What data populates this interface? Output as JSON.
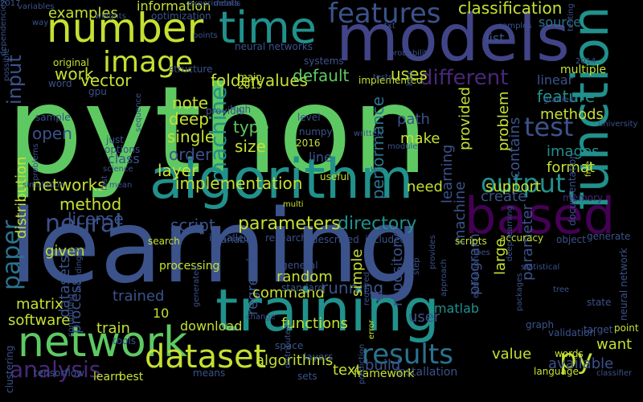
{
  "palette": {
    "background": "#000000",
    "light_green": "#c5e032",
    "green": "#5ec962",
    "bright_green": "#7ad151",
    "teal": "#21918c",
    "teal_dark": "#1f9e89",
    "blue": "#3b528b",
    "indigo": "#414487",
    "purple": "#440154",
    "purple2": "#482878",
    "cyan_blue": "#2c728e",
    "yellow": "#fde725"
  },
  "words": [
    {
      "text": "python",
      "color": "#5ec962",
      "vertical": false
    },
    {
      "text": "learning",
      "color": "#3b528b",
      "vertical": false
    },
    {
      "text": "models",
      "color": "#414487",
      "vertical": false
    },
    {
      "text": "number",
      "color": "#c5e032",
      "vertical": false
    },
    {
      "text": "time",
      "color": "#21918c",
      "vertical": false
    },
    {
      "text": "algorithm",
      "color": "#21918c",
      "vertical": false
    },
    {
      "text": "based",
      "color": "#440154",
      "vertical": false
    },
    {
      "text": "function",
      "color": "#21918c",
      "vertical": true
    },
    {
      "text": "training",
      "color": "#21918c",
      "vertical": false
    },
    {
      "text": "network",
      "color": "#5ec962",
      "vertical": false
    },
    {
      "text": "features",
      "color": "#3b528b",
      "vertical": false
    },
    {
      "text": "image",
      "color": "#c5e032",
      "vertical": false
    },
    {
      "text": "dataset",
      "color": "#c5e032",
      "vertical": false
    },
    {
      "text": "neural",
      "color": "#3b528b",
      "vertical": false
    },
    {
      "text": "output",
      "color": "#21918c",
      "vertical": false
    },
    {
      "text": "test",
      "color": "#3b528b",
      "vertical": false
    },
    {
      "text": "results",
      "color": "#2c728e",
      "vertical": false
    },
    {
      "text": "analysis",
      "color": "#482878",
      "vertical": false
    },
    {
      "text": "py",
      "color": "#c5e032",
      "vertical": false
    },
    {
      "text": "paper",
      "color": "#2c728e",
      "vertical": true
    },
    {
      "text": "machine",
      "color": "#21918c",
      "vertical": true
    },
    {
      "text": "input",
      "color": "#3b528b",
      "vertical": true
    },
    {
      "text": "different",
      "color": "#482878",
      "vertical": false
    },
    {
      "text": "directory",
      "color": "#21918c",
      "vertical": false
    },
    {
      "text": "parameters",
      "color": "#c5e032",
      "vertical": false
    },
    {
      "text": "classification",
      "color": "#c5e032",
      "vertical": false
    },
    {
      "text": "examples",
      "color": "#c5e032",
      "vertical": false
    },
    {
      "text": "information",
      "color": "#c5e032",
      "vertical": false
    },
    {
      "text": "values",
      "color": "#c5e032",
      "vertical": false
    },
    {
      "text": "folder",
      "color": "#c5e032",
      "vertical": false
    },
    {
      "text": "vector",
      "color": "#c5e032",
      "vertical": false
    },
    {
      "text": "work",
      "color": "#c5e032",
      "vertical": false
    },
    {
      "text": "note",
      "color": "#c5e032",
      "vertical": false
    },
    {
      "text": "uses",
      "color": "#c5e032",
      "vertical": false
    },
    {
      "text": "default",
      "color": "#5ec962",
      "vertical": false
    },
    {
      "text": "running",
      "color": "#3b528b",
      "vertical": false
    },
    {
      "text": "deep",
      "color": "#c5e032",
      "vertical": false
    },
    {
      "text": "type",
      "color": "#5ec962",
      "vertical": false
    },
    {
      "text": "size",
      "color": "#c5e032",
      "vertical": false
    },
    {
      "text": "single",
      "color": "#c5e032",
      "vertical": false
    },
    {
      "text": "order",
      "color": "#3b528b",
      "vertical": false
    },
    {
      "text": "layer",
      "color": "#c5e032",
      "vertical": false
    },
    {
      "text": "open",
      "color": "#3b528b",
      "vertical": false
    },
    {
      "text": "networks",
      "color": "#c5e032",
      "vertical": false
    },
    {
      "text": "method",
      "color": "#c5e032",
      "vertical": false
    },
    {
      "text": "license",
      "color": "#3b528b",
      "vertical": false
    },
    {
      "text": "script",
      "color": "#3b528b",
      "vertical": false
    },
    {
      "text": "implementation",
      "color": "#c5e032",
      "vertical": false
    },
    {
      "text": "class",
      "color": "#3b528b",
      "vertical": false
    },
    {
      "text": "source",
      "color": "#2c728e",
      "vertical": false
    },
    {
      "text": "list",
      "color": "#3b528b",
      "vertical": false
    },
    {
      "text": "linear",
      "color": "#3b528b",
      "vertical": false
    },
    {
      "text": "feature",
      "color": "#21918c",
      "vertical": false
    },
    {
      "text": "methods",
      "color": "#c5e032",
      "vertical": false
    },
    {
      "text": "images",
      "color": "#21918c",
      "vertical": false
    },
    {
      "text": "format",
      "color": "#c5e032",
      "vertical": false
    },
    {
      "text": "support",
      "color": "#c5e032",
      "vertical": false
    },
    {
      "text": "create",
      "color": "#3b528b",
      "vertical": false
    },
    {
      "text": "need",
      "color": "#c5e032",
      "vertical": false
    },
    {
      "text": "path",
      "color": "#3b528b",
      "vertical": false
    },
    {
      "text": "make",
      "color": "#c5e032",
      "vertical": false
    },
    {
      "text": "line",
      "color": "#3b528b",
      "vertical": false
    },
    {
      "text": "multiple",
      "color": "#c5e032",
      "vertical": false
    },
    {
      "text": "problem",
      "color": "#c5e032",
      "vertical": true
    },
    {
      "text": "performance",
      "color": "#2c728e",
      "vertical": true
    },
    {
      "text": "contains",
      "color": "#3b528b",
      "vertical": true
    },
    {
      "text": "distribution",
      "color": "#c5e032",
      "vertical": true
    },
    {
      "text": "provided",
      "color": "#c5e032",
      "vertical": true
    },
    {
      "text": "learning",
      "color": "#3b528b",
      "vertical": true
    },
    {
      "text": "machine",
      "color": "#3b528b",
      "vertical": true
    },
    {
      "text": "repository",
      "color": "#3b528b",
      "vertical": true
    },
    {
      "text": "simple",
      "color": "#c5e032",
      "vertical": true
    },
    {
      "text": "program",
      "color": "#3b528b",
      "vertical": true
    },
    {
      "text": "parameter",
      "color": "#3b528b",
      "vertical": true
    },
    {
      "text": "large",
      "color": "#c5e032",
      "vertical": true
    },
    {
      "text": "regression",
      "color": "#3b528b",
      "vertical": true
    },
    {
      "text": "datasets",
      "color": "#3b528b",
      "vertical": true
    },
    {
      "text": "process",
      "color": "#3b528b",
      "vertical": true
    },
    {
      "text": "given",
      "color": "#c5e032",
      "vertical": false
    },
    {
      "text": "random",
      "color": "#c5e032",
      "vertical": false
    },
    {
      "text": "command",
      "color": "#c5e032",
      "vertical": false
    },
    {
      "text": "trained",
      "color": "#3b528b",
      "vertical": false
    },
    {
      "text": "processing",
      "color": "#c5e032",
      "vertical": false
    },
    {
      "text": "10",
      "color": "#c5e032",
      "vertical": false
    },
    {
      "text": "matrix",
      "color": "#c5e032",
      "vertical": false
    },
    {
      "text": "software",
      "color": "#c5e032",
      "vertical": false
    },
    {
      "text": "train",
      "color": "#c5e032",
      "vertical": false
    },
    {
      "text": "download",
      "color": "#c5e032",
      "vertical": false
    },
    {
      "text": "functions",
      "color": "#c5e032",
      "vertical": false
    },
    {
      "text": "user",
      "color": "#3b528b",
      "vertical": false
    },
    {
      "text": "matlab",
      "color": "#21918c",
      "vertical": false
    },
    {
      "text": "value",
      "color": "#c5e032",
      "vertical": false
    },
    {
      "text": "build",
      "color": "#3b528b",
      "vertical": false
    },
    {
      "text": "available",
      "color": "#3b528b",
      "vertical": false
    },
    {
      "text": "want",
      "color": "#c5e032",
      "vertical": false
    },
    {
      "text": "algorithms",
      "color": "#c5e032",
      "vertical": false
    },
    {
      "text": "text",
      "color": "#c5e032",
      "vertical": false
    },
    {
      "text": "accuracy",
      "color": "#c5e032",
      "vertical": false
    },
    {
      "text": "installation",
      "color": "#3b528b",
      "vertical": false
    },
    {
      "text": "framework",
      "color": "#c5e032",
      "vertical": false
    },
    {
      "text": "language",
      "color": "#c5e032",
      "vertical": false
    },
    {
      "text": "classifier",
      "color": "#3b528b",
      "vertical": false
    },
    {
      "text": "neural network",
      "color": "#3b528b",
      "vertical": true
    },
    {
      "text": "generate",
      "color": "#3b528b",
      "vertical": false
    },
    {
      "text": "point",
      "color": "#c5e032",
      "vertical": false
    },
    {
      "text": "graph",
      "color": "#3b528b",
      "vertical": false
    },
    {
      "text": "target",
      "color": "#3b528b",
      "vertical": false
    },
    {
      "text": "tensorflow",
      "color": "#3b528b",
      "vertical": false
    },
    {
      "text": "learn",
      "color": "#c5e032",
      "vertical": false
    },
    {
      "text": "best",
      "color": "#c5e032",
      "vertical": false
    },
    {
      "text": "sets",
      "color": "#3b528b",
      "vertical": false
    },
    {
      "text": "means",
      "color": "#3b528b",
      "vertical": false
    },
    {
      "text": "tools",
      "color": "#3b528b",
      "vertical": false
    },
    {
      "text": "clustering",
      "color": "#3b528b",
      "vertical": true
    },
    {
      "text": "optimization",
      "color": "#3b528b",
      "vertical": false
    },
    {
      "text": "weights",
      "color": "#3b528b",
      "vertical": false
    },
    {
      "text": "variables",
      "color": "#3b528b",
      "vertical": false
    },
    {
      "text": "possible",
      "color": "#3b528b",
      "vertical": true
    },
    {
      "text": "way",
      "color": "#3b528b",
      "vertical": false
    },
    {
      "text": "original",
      "color": "#c5e032",
      "vertical": false
    },
    {
      "text": "word",
      "color": "#3b528b",
      "vertical": false
    },
    {
      "text": "gpu",
      "color": "#3b528b",
      "vertical": false
    },
    {
      "text": "sample",
      "color": "#3b528b",
      "vertical": false
    },
    {
      "text": "details",
      "color": "#3b528b",
      "vertical": false
    },
    {
      "text": "neural networks",
      "color": "#3b528b",
      "vertical": false
    },
    {
      "text": "structure",
      "color": "#3b528b",
      "vertical": false
    },
    {
      "text": "main",
      "color": "#c5e032",
      "vertical": false
    },
    {
      "text": "2015",
      "color": "#c5e032",
      "vertical": false
    },
    {
      "text": "high",
      "color": "#3b528b",
      "vertical": false
    },
    {
      "text": "level",
      "color": "#3b528b",
      "vertical": false
    },
    {
      "text": "numpy",
      "color": "#3b528b",
      "vertical": false
    },
    {
      "text": "2016",
      "color": "#c5e032",
      "vertical": false
    },
    {
      "text": "written",
      "color": "#3b528b",
      "vertical": false
    },
    {
      "text": "module",
      "color": "#3b528b",
      "vertical": false
    },
    {
      "text": "systems",
      "color": "#3b528b",
      "vertical": false
    },
    {
      "text": "implemented",
      "color": "#c5e032",
      "vertical": false
    },
    {
      "text": "provide",
      "color": "#3b528b",
      "vertical": false
    },
    {
      "text": "sequence",
      "color": "#3b528b",
      "vertical": true
    },
    {
      "text": "just",
      "color": "#3b528b",
      "vertical": false
    },
    {
      "text": "options",
      "color": "#3b528b",
      "vertical": false
    },
    {
      "text": "science",
      "color": "#3b528b",
      "vertical": false
    },
    {
      "text": "useful",
      "color": "#c5e032",
      "vertical": false
    },
    {
      "text": "multi",
      "color": "#c5e032",
      "vertical": false
    },
    {
      "text": "installed",
      "color": "#3b528b",
      "vertical": false
    },
    {
      "text": "research",
      "color": "#3b528b",
      "vertical": false
    },
    {
      "text": "described",
      "color": "#3b528b",
      "vertical": false
    },
    {
      "text": "included",
      "color": "#3b528b",
      "vertical": false
    },
    {
      "text": "scripts",
      "color": "#c5e032",
      "vertical": false
    },
    {
      "text": "search",
      "color": "#c5e032",
      "vertical": false
    },
    {
      "text": "variable",
      "color": "#3b528b",
      "vertical": false
    },
    {
      "text": "general",
      "color": "#3b528b",
      "vertical": false
    },
    {
      "text": "standard",
      "color": "#3b528b",
      "vertical": false
    },
    {
      "text": "space",
      "color": "#3b528b",
      "vertical": false
    },
    {
      "text": "layers",
      "color": "#3b528b",
      "vertical": false
    },
    {
      "text": "validation",
      "color": "#3b528b",
      "vertical": false
    },
    {
      "text": "words",
      "color": "#c5e032",
      "vertical": false
    },
    {
      "text": "state",
      "color": "#3b528b",
      "vertical": false
    },
    {
      "text": "object",
      "color": "#3b528b",
      "vertical": false
    },
    {
      "text": "free",
      "color": "#c5e032",
      "vertical": true
    },
    {
      "text": "documentation",
      "color": "#3b528b",
      "vertical": true
    },
    {
      "text": "memory",
      "color": "#482878",
      "vertical": false
    },
    {
      "text": "testing",
      "color": "#3b528b",
      "vertical": true
    },
    {
      "text": "samples",
      "color": "#3b528b",
      "vertical": false
    },
    {
      "text": "2014",
      "color": "#3b528b",
      "vertical": false
    },
    {
      "text": "gradient",
      "color": "#3b528b",
      "vertical": false
    },
    {
      "text": "university",
      "color": "#3b528b",
      "vertical": false
    },
    {
      "text": "deep learning",
      "color": "#3b528b",
      "vertical": true
    },
    {
      "text": "statistical",
      "color": "#3b528b",
      "vertical": false
    },
    {
      "text": "packages",
      "color": "#3b528b",
      "vertical": true
    },
    {
      "text": "tree",
      "color": "#3b528b",
      "vertical": false
    },
    {
      "text": "does",
      "color": "#3b528b",
      "vertical": false
    },
    {
      "text": "evaluation",
      "color": "#3b528b",
      "vertical": true
    },
    {
      "text": "approach",
      "color": "#3b528b",
      "vertical": true
    },
    {
      "text": "step",
      "color": "#3b528b",
      "vertical": true
    },
    {
      "text": "required",
      "color": "#3b528b",
      "vertical": true
    },
    {
      "text": "error",
      "color": "#c5e032",
      "vertical": true
    },
    {
      "text": "change",
      "color": "#3b528b",
      "vertical": false
    },
    {
      "text": "distributed",
      "color": "#3b528b",
      "vertical": true
    },
    {
      "text": "prediction",
      "color": "#3b528b",
      "vertical": true
    },
    {
      "text": "fast",
      "color": "#3b528b",
      "vertical": true
    },
    {
      "text": "mean",
      "color": "#3b528b",
      "vertical": false
    },
    {
      "text": "case",
      "color": "#3b528b",
      "vertical": false
    },
    {
      "text": "including",
      "color": "#3b528b",
      "vertical": true
    },
    {
      "text": "computing",
      "color": "#3b528b",
      "vertical": true
    },
    {
      "text": "simulation",
      "color": "#3b528b",
      "vertical": false
    },
    {
      "text": "problems",
      "color": "#3b528b",
      "vertical": true
    },
    {
      "text": "points",
      "color": "#3b528b",
      "vertical": false
    },
    {
      "text": "txt",
      "color": "#3b528b",
      "vertical": false
    },
    {
      "text": "experiments",
      "color": "#3b528b",
      "vertical": false
    },
    {
      "text": "probability",
      "color": "#3b528b",
      "vertical": false
    },
    {
      "text": "tests",
      "color": "#3b528b",
      "vertical": false
    },
    {
      "text": "loss",
      "color": "#3b528b",
      "vertical": true
    },
    {
      "text": "provides",
      "color": "#3b528b",
      "vertical": true
    },
    {
      "text": "generated",
      "color": "#3b528b",
      "vertical": true
    },
    {
      "text": "2017",
      "color": "#3b528b",
      "vertical": false
    },
    {
      "text": "dependencies",
      "color": "#3b528b",
      "vertical": true
    }
  ]
}
